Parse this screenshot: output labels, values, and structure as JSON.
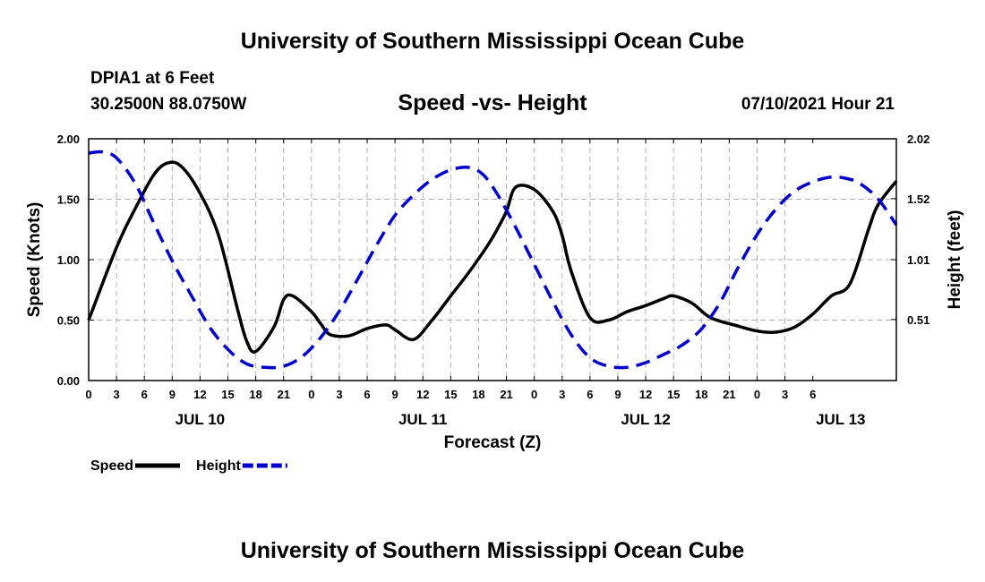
{
  "page": {
    "title_top": "University of Southern Mississippi Ocean Cube",
    "title_bottom": "University of Southern Mississippi Ocean Cube",
    "station": "DPIA1 at 6 Feet",
    "coords": "30.2500N  88.0750W",
    "date": "07/10/2021 Hour 21"
  },
  "chart_data": {
    "type": "line",
    "title": "Speed -vs- Height",
    "xlabel": "Forecast (Z)",
    "ylabel": "Speed (Knots)",
    "y2label": "Height (feet)",
    "ylim": [
      0,
      2.0
    ],
    "y2lim": [
      0.0,
      2.02
    ],
    "yticks": [
      "0.00",
      "0.50",
      "1.00",
      "1.50",
      "2.00"
    ],
    "y2ticks": [
      "0.51",
      "1.01",
      "1.52",
      "2.02"
    ],
    "y2tick_values": [
      0.51,
      1.01,
      1.52,
      2.02
    ],
    "xlim": [
      0,
      87
    ],
    "xtick_labels": [
      "0",
      "3",
      "6",
      "9",
      "12",
      "15",
      "18",
      "21",
      "0",
      "3",
      "6",
      "9",
      "12",
      "15",
      "18",
      "21",
      "0",
      "3",
      "6",
      "9",
      "12",
      "15",
      "18",
      "21",
      "0",
      "3",
      "6"
    ],
    "date_labels": [
      {
        "label": "JUL 10",
        "x": 12
      },
      {
        "label": "JUL 11",
        "x": 36
      },
      {
        "label": "JUL 12",
        "x": 60
      },
      {
        "label": "JUL 13",
        "x": 81
      }
    ],
    "series": [
      {
        "name": "Speed",
        "color": "#000000",
        "style": "solid",
        "axis": "left",
        "x": [
          0,
          3,
          5,
          7,
          8.5,
          10,
          12,
          14,
          16,
          17,
          18,
          20,
          21,
          22,
          24,
          25,
          26,
          28,
          30,
          32,
          33,
          35,
          37,
          39,
          41,
          43,
          44,
          45,
          46,
          48,
          50,
          51,
          52,
          54,
          56,
          58,
          60,
          62,
          63,
          65,
          67,
          70,
          72,
          74,
          76,
          78,
          80,
          82,
          84,
          85,
          87
        ],
        "values": [
          0.5,
          1.1,
          1.42,
          1.7,
          1.8,
          1.77,
          1.55,
          1.2,
          0.6,
          0.33,
          0.24,
          0.45,
          0.67,
          0.7,
          0.57,
          0.47,
          0.38,
          0.37,
          0.43,
          0.46,
          0.42,
          0.34,
          0.5,
          0.7,
          0.9,
          1.12,
          1.25,
          1.4,
          1.6,
          1.58,
          1.4,
          1.2,
          0.9,
          0.52,
          0.5,
          0.57,
          0.62,
          0.68,
          0.7,
          0.64,
          0.52,
          0.45,
          0.41,
          0.4,
          0.44,
          0.55,
          0.7,
          0.8,
          1.25,
          1.45,
          1.65
        ]
      },
      {
        "name": "Height",
        "color": "#0000cc",
        "style": "dashed",
        "axis": "right",
        "x": [
          0,
          1.5,
          3,
          5,
          7,
          9,
          11,
          13,
          15,
          17,
          19,
          21,
          23,
          25,
          27,
          29,
          31,
          33,
          35,
          37,
          39,
          41,
          42.5,
          44,
          46,
          48,
          50,
          52,
          54,
          56,
          58,
          60,
          62,
          64,
          66,
          68,
          70,
          72,
          74,
          76,
          78,
          80,
          81.5,
          83,
          85,
          87
        ],
        "values": [
          1.9,
          1.91,
          1.86,
          1.65,
          1.32,
          1.0,
          0.72,
          0.45,
          0.26,
          0.14,
          0.11,
          0.12,
          0.2,
          0.36,
          0.58,
          0.85,
          1.13,
          1.38,
          1.55,
          1.68,
          1.76,
          1.78,
          1.72,
          1.56,
          1.28,
          0.97,
          0.66,
          0.38,
          0.19,
          0.12,
          0.11,
          0.15,
          0.22,
          0.3,
          0.43,
          0.65,
          0.95,
          1.22,
          1.43,
          1.58,
          1.66,
          1.7,
          1.69,
          1.65,
          1.52,
          1.3
        ]
      }
    ],
    "legend": [
      {
        "label": "Speed",
        "color": "#000000",
        "style": "solid"
      },
      {
        "label": "Height",
        "color": "#0000cc",
        "style": "dashed"
      }
    ],
    "grid": true
  }
}
